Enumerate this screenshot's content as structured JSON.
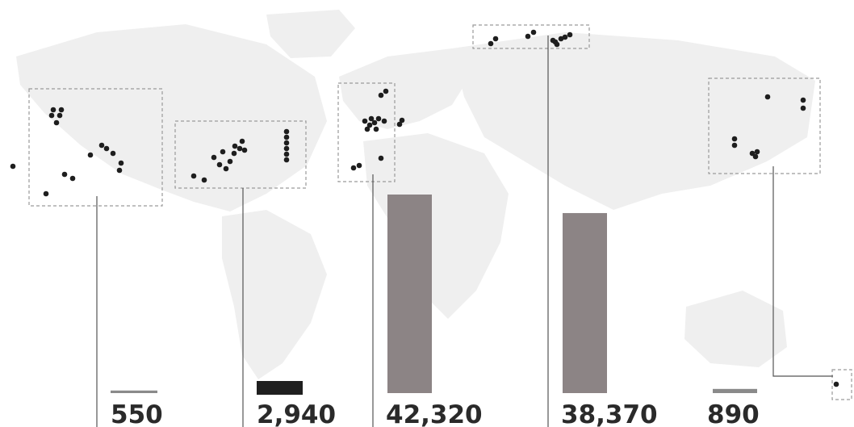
{
  "chart_data": {
    "type": "bar",
    "categories": [
      "",
      "",
      "",
      "",
      ""
    ],
    "values": [
      550,
      2940,
      42320,
      38370,
      890
    ],
    "value_labels": [
      "550",
      "2,940",
      "42,320",
      "38,370",
      "890"
    ],
    "bar_colors": [
      "#8a8a8a",
      "#1f1f1f",
      "#8c8485",
      "#8c8485",
      "#8a8a8a"
    ],
    "title": "",
    "xlabel": "",
    "ylabel": "",
    "ylim": [
      0,
      42320
    ],
    "grid": false,
    "legend": "none",
    "background": "world-map-outline",
    "point_clusters": [
      {
        "dots": 15
      },
      {
        "dots": 18
      },
      {
        "dots": 15
      },
      {
        "dots": 10
      },
      {
        "dots": 8
      },
      {
        "dots": 1
      }
    ]
  }
}
